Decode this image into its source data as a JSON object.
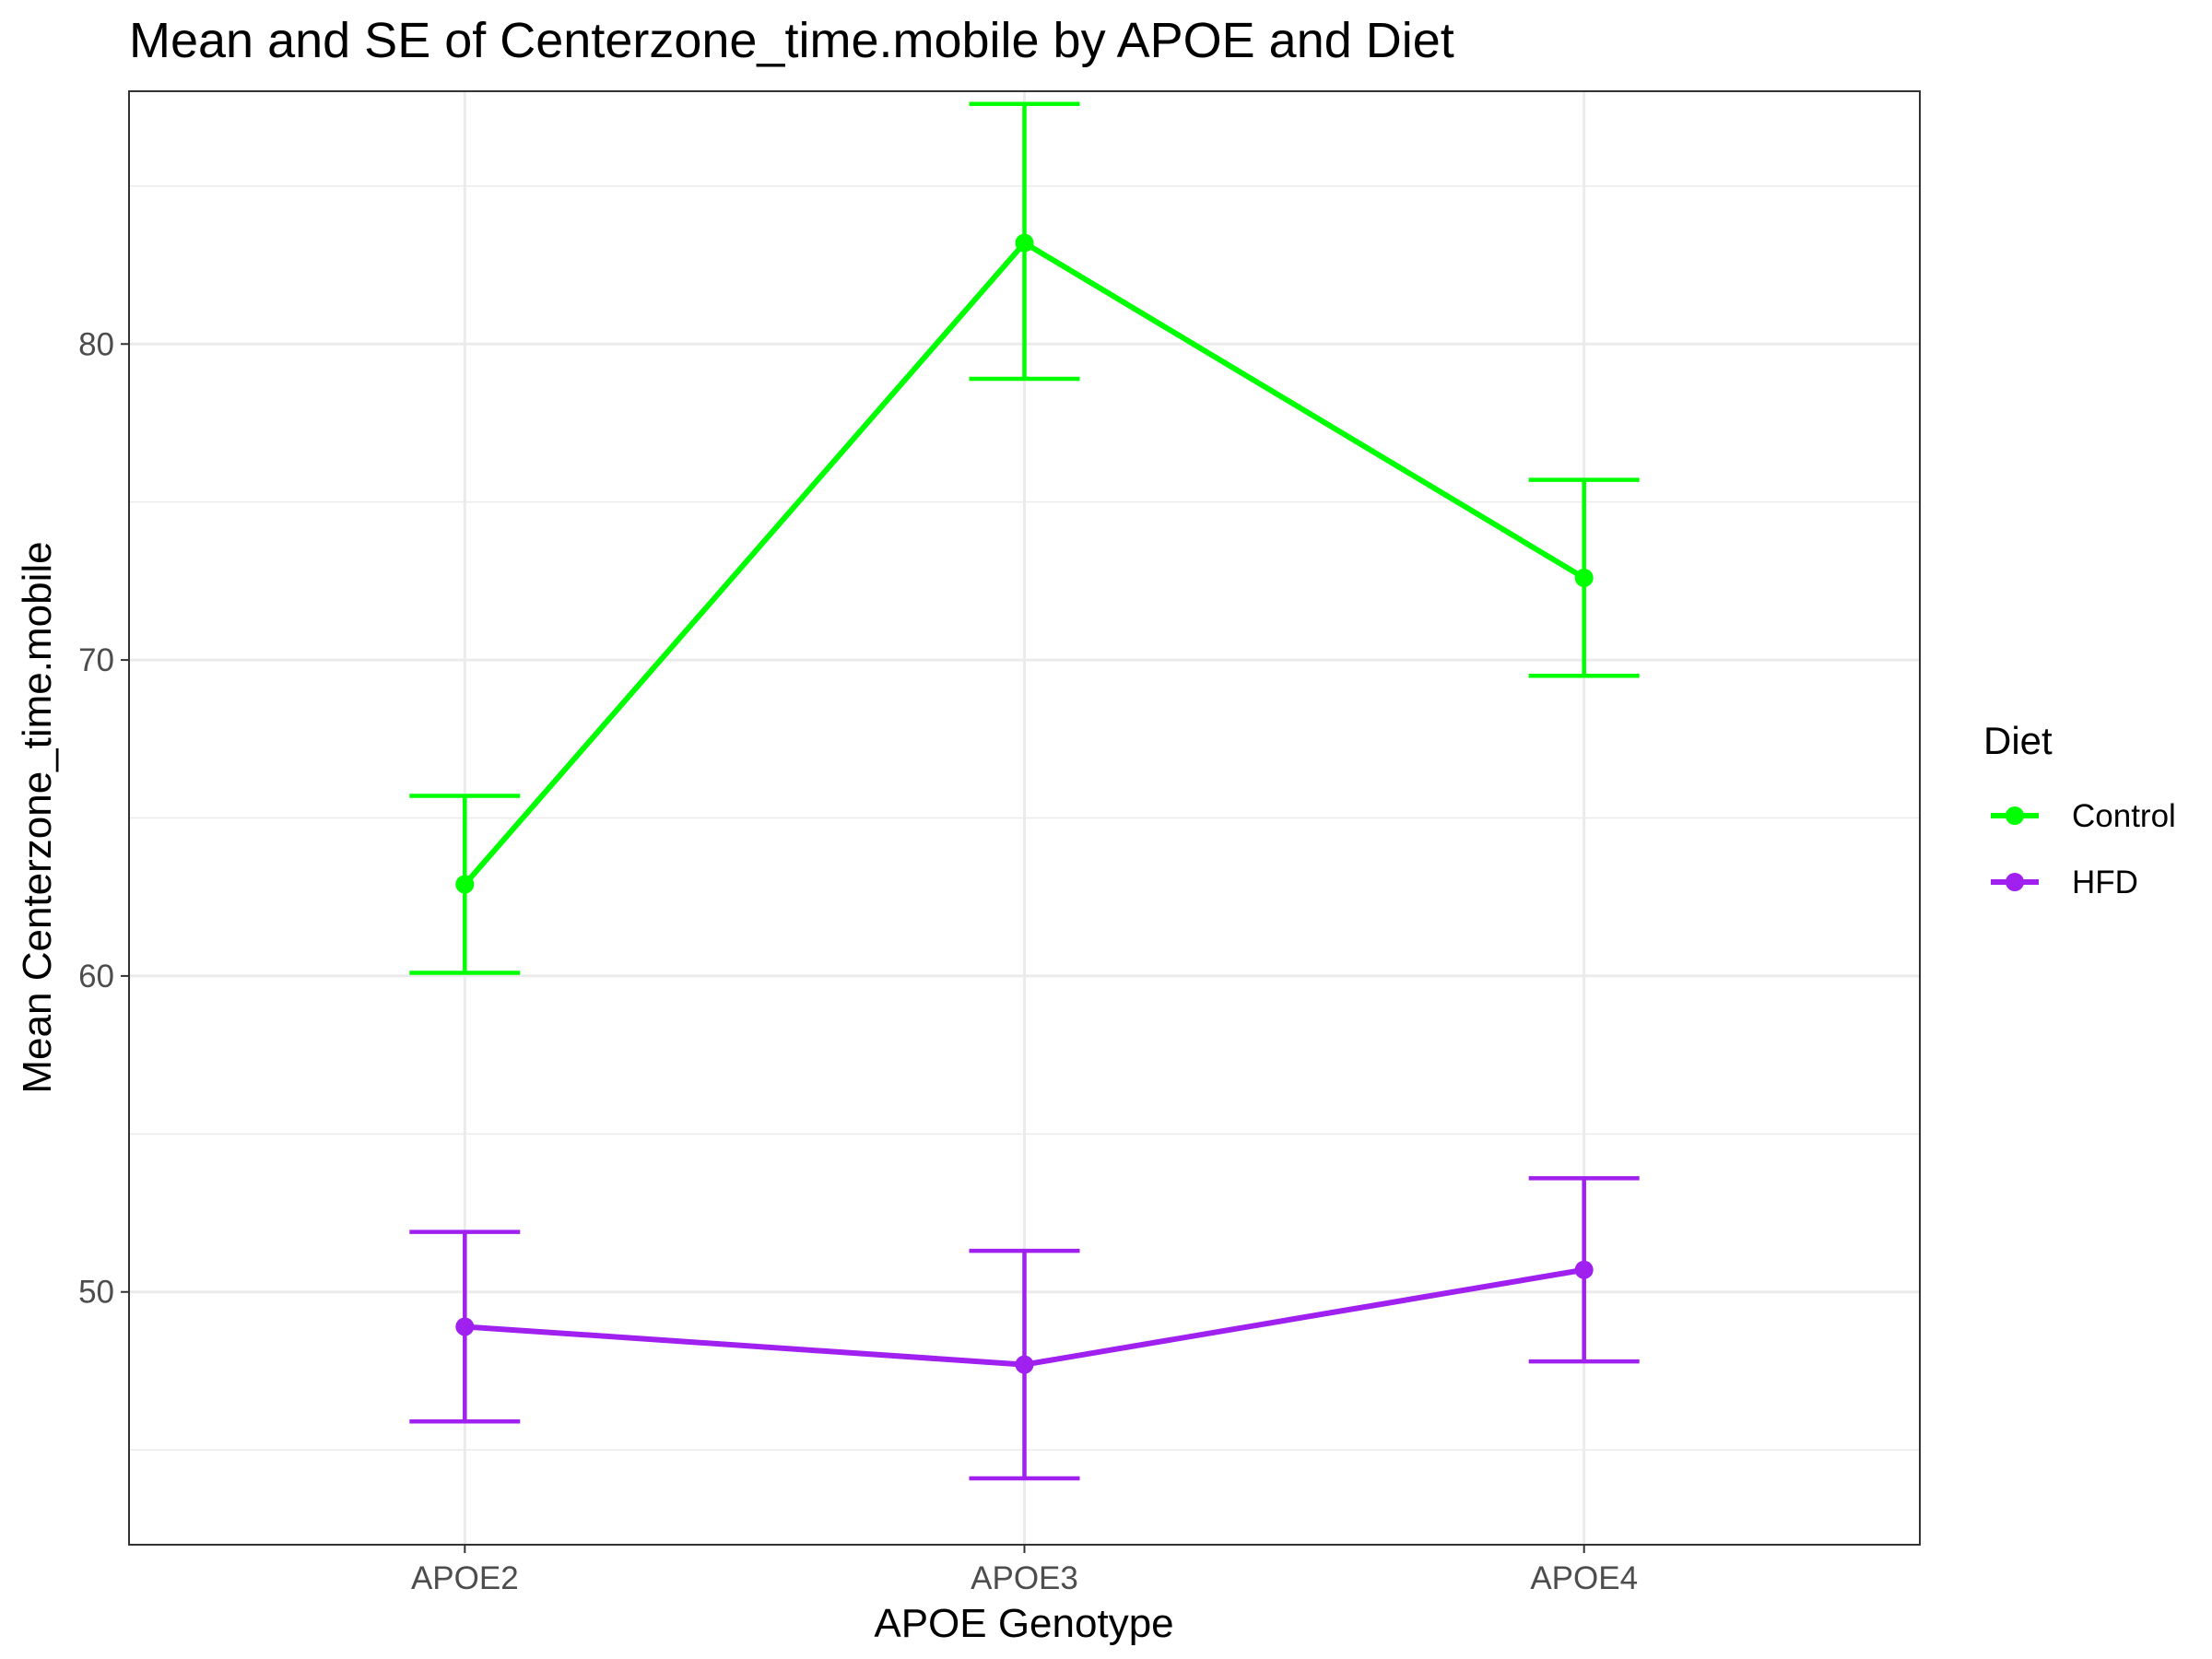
{
  "chart_data": {
    "type": "line",
    "title": "Mean and SE of Centerzone_time.mobile by APOE and Diet",
    "xlabel": "APOE Genotype",
    "ylabel": "Mean Centerzone_time.mobile",
    "categories": [
      "APOE2",
      "APOE3",
      "APOE4"
    ],
    "ylim": [
      42,
      88
    ],
    "y_ticks": [
      50,
      60,
      70,
      80
    ],
    "y_tick_labels": [
      "50",
      "60",
      "70",
      "80"
    ],
    "grid": true,
    "error_bars": "SE",
    "legend": {
      "title": "Diet",
      "position": "right"
    },
    "series": [
      {
        "name": "Control",
        "color": "#00ff00",
        "values": [
          62.9,
          83.2,
          72.6
        ],
        "se_lower": [
          60.1,
          78.9,
          69.5
        ],
        "se_upper": [
          65.7,
          87.6,
          75.7
        ]
      },
      {
        "name": "HFD",
        "color": "#a020f0",
        "values": [
          48.9,
          47.7,
          50.7
        ],
        "se_lower": [
          45.9,
          44.1,
          47.8
        ],
        "se_upper": [
          51.9,
          51.3,
          53.6
        ]
      }
    ]
  }
}
